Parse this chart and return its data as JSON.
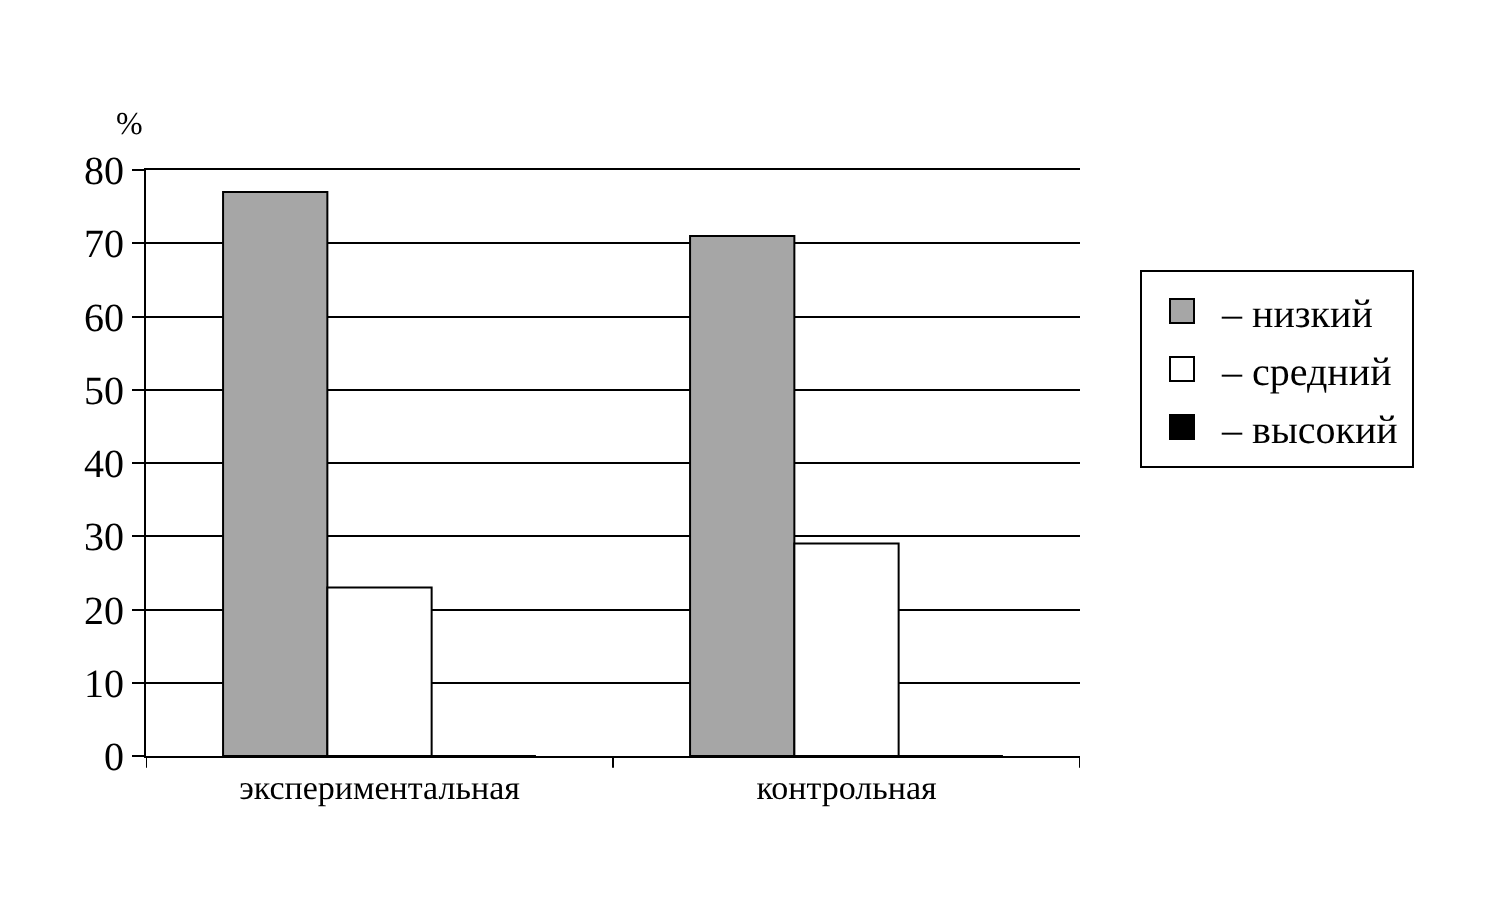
{
  "chart_data": {
    "type": "bar",
    "ylabel": "%",
    "categories": [
      "экспериментальная",
      "контрольная"
    ],
    "series": [
      {
        "name": "– низкий",
        "color": "#a6a6a6",
        "values": [
          77,
          71
        ]
      },
      {
        "name": "– средний",
        "color": "#ffffff",
        "values": [
          23,
          29
        ]
      },
      {
        "name": "– высокий",
        "color": "#000000",
        "values": [
          0,
          0
        ]
      }
    ],
    "ylim": [
      0,
      80
    ],
    "yticks": [
      0,
      10,
      20,
      30,
      40,
      50,
      60,
      70,
      80
    ],
    "grid": "y",
    "legend": "right"
  }
}
